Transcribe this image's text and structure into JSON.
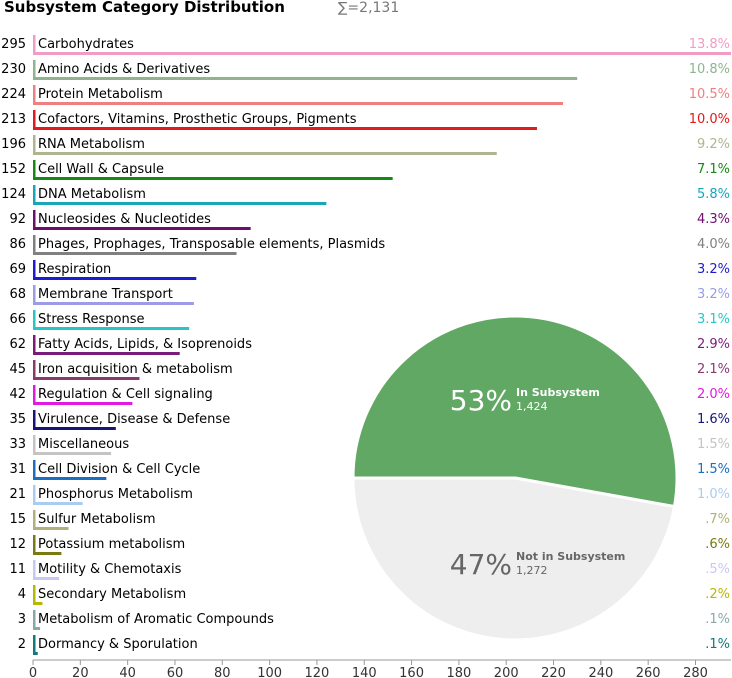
{
  "chart_data": {
    "type": "bar",
    "title": "Subsystem Category Distribution",
    "total_label": "∑=2,131",
    "categories": [
      {
        "name": "Carbohydrates",
        "count": 295,
        "pct": "13.8%",
        "color": "#f29bc4"
      },
      {
        "name": "Amino Acids & Derivatives",
        "count": 230,
        "pct": "10.8%",
        "color": "#8fb48f"
      },
      {
        "name": "Protein Metabolism",
        "count": 224,
        "pct": "10.5%",
        "color": "#f08080"
      },
      {
        "name": "Cofactors, Vitamins, Prosthetic Groups, Pigments",
        "count": 213,
        "pct": "10.0%",
        "color": "#e31a1c"
      },
      {
        "name": "RNA Metabolism",
        "count": 196,
        "pct": "9.2%",
        "color": "#b0b48f"
      },
      {
        "name": "Cell Wall & Capsule",
        "count": 152,
        "pct": "7.1%",
        "color": "#138a13"
      },
      {
        "name": "DNA Metabolism",
        "count": 124,
        "pct": "5.8%",
        "color": "#17a7b8"
      },
      {
        "name": "Nucleosides & Nucleotides",
        "count": 92,
        "pct": "4.3%",
        "color": "#6e0f6e"
      },
      {
        "name": "Phages, Prophages, Transposable elements, Plasmids",
        "count": 86,
        "pct": "4.0%",
        "color": "#808080"
      },
      {
        "name": "Respiration",
        "count": 69,
        "pct": "3.2%",
        "color": "#1c1cd0"
      },
      {
        "name": "Membrane Transport",
        "count": 68,
        "pct": "3.2%",
        "color": "#9b9be6"
      },
      {
        "name": "Stress Response",
        "count": 66,
        "pct": "3.1%",
        "color": "#27c6c6"
      },
      {
        "name": "Fatty Acids, Lipids, & Isoprenoids",
        "count": 62,
        "pct": "2.9%",
        "color": "#7a1a7a"
      },
      {
        "name": "Iron acquisition & metabolism",
        "count": 45,
        "pct": "2.1%",
        "color": "#8b3a6e"
      },
      {
        "name": "Regulation & Cell signaling",
        "count": 42,
        "pct": "2.0%",
        "color": "#e01ae0"
      },
      {
        "name": "Virulence, Disease & Defense",
        "count": 35,
        "pct": "1.6%",
        "color": "#15157a"
      },
      {
        "name": "Miscellaneous",
        "count": 33,
        "pct": "1.5%",
        "color": "#c4c4c4"
      },
      {
        "name": "Cell Division & Cell Cycle",
        "count": 31,
        "pct": "1.5%",
        "color": "#1b6ec2"
      },
      {
        "name": "Phosphorus Metabolism",
        "count": 21,
        "pct": "1.0%",
        "color": "#a9cdef"
      },
      {
        "name": "Sulfur Metabolism",
        "count": 15,
        "pct": ".7%",
        "color": "#b0b07a"
      },
      {
        "name": "Potassium metabolism",
        "count": 12,
        "pct": ".6%",
        "color": "#7a7a10"
      },
      {
        "name": "Motility & Chemotaxis",
        "count": 11,
        "pct": ".5%",
        "color": "#c8c8f0"
      },
      {
        "name": "Secondary Metabolism",
        "count": 4,
        "pct": ".2%",
        "color": "#b8b800"
      },
      {
        "name": "Metabolism of Aromatic Compounds",
        "count": 3,
        "pct": ".1%",
        "color": "#8aa8a8"
      },
      {
        "name": "Dormancy & Sporulation",
        "count": 2,
        "pct": ".1%",
        "color": "#127a7a"
      }
    ],
    "x_ticks": [
      "0",
      "20",
      "40",
      "60",
      "80",
      "100",
      "120",
      "140",
      "160",
      "180",
      "200",
      "220",
      "240",
      "260",
      "280"
    ],
    "xlim": [
      0,
      295
    ],
    "pie": {
      "type": "pie",
      "slices": [
        {
          "pct_label": "53%",
          "name": "In Subsystem",
          "value": 1424,
          "value_label": "1,424",
          "color": "#61a865",
          "text_color": "#ffffff"
        },
        {
          "pct_label": "47%",
          "name": "Not in Subsystem",
          "value": 1272,
          "value_label": "1,272",
          "color": "#eeeeee",
          "text_color": "#666666"
        }
      ]
    }
  }
}
